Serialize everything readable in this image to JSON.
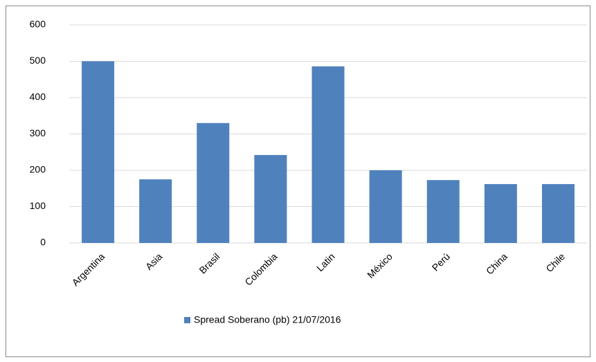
{
  "chart_data": {
    "type": "bar",
    "categories": [
      "Argentina",
      "Asia",
      "Brasil",
      "Colombia",
      "Latin",
      "México",
      "Perú",
      "China",
      "Chile"
    ],
    "series": [
      {
        "name": "Spread Soberano (pb) 21/07/2016",
        "color": "#4f81bd",
        "values": [
          500,
          175,
          330,
          242,
          486,
          200,
          173,
          162,
          162
        ]
      }
    ],
    "ylim": [
      0,
      600
    ],
    "yticks": [
      0,
      100,
      200,
      300,
      400,
      500,
      600
    ],
    "grid": true,
    "legend": "bottom"
  }
}
